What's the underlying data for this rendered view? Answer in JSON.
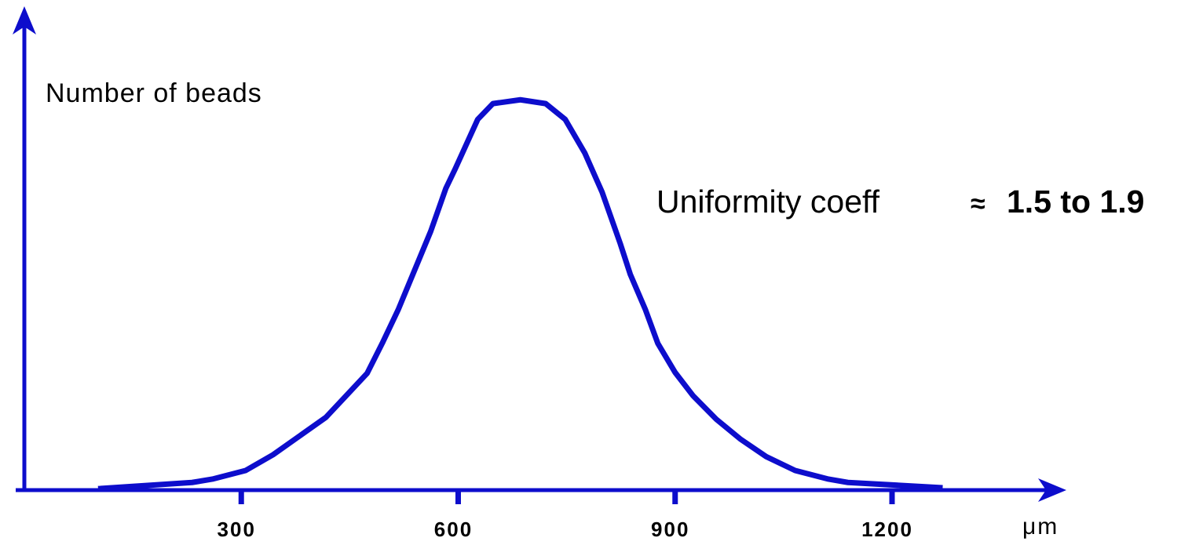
{
  "chart_data": {
    "type": "line",
    "y_label": "Number of beads",
    "x_label": "μm",
    "annotation": {
      "text": "Uniformity coeff",
      "symbol": "≈",
      "range": "1.5 to 1.9"
    },
    "color": "#0d0dcc",
    "x": [
      102,
      232,
      260,
      306,
      344,
      417,
      474,
      495,
      517,
      562,
      583,
      596,
      627,
      648,
      686,
      721,
      748,
      775,
      799,
      824,
      838,
      859,
      876,
      900,
      925,
      957,
      990,
      1026,
      1066,
      1112,
      1139,
      1270
    ],
    "values": [
      0.3,
      1.6,
      2.3,
      4.1,
      7.4,
      15.2,
      24.4,
      30.7,
      37.7,
      54.1,
      63.1,
      67.2,
      77.5,
      80.8,
      81.6,
      80.8,
      77.5,
      70.5,
      62.3,
      51.6,
      45.1,
      37.7,
      30.7,
      24.6,
      19.7,
      14.8,
      10.7,
      7.0,
      4.1,
      2.3,
      1.6,
      0.5
    ],
    "xlim": [
      0,
      1440
    ],
    "ylim": [
      0,
      100
    ],
    "xticks": [
      300,
      600,
      900,
      1200
    ]
  }
}
